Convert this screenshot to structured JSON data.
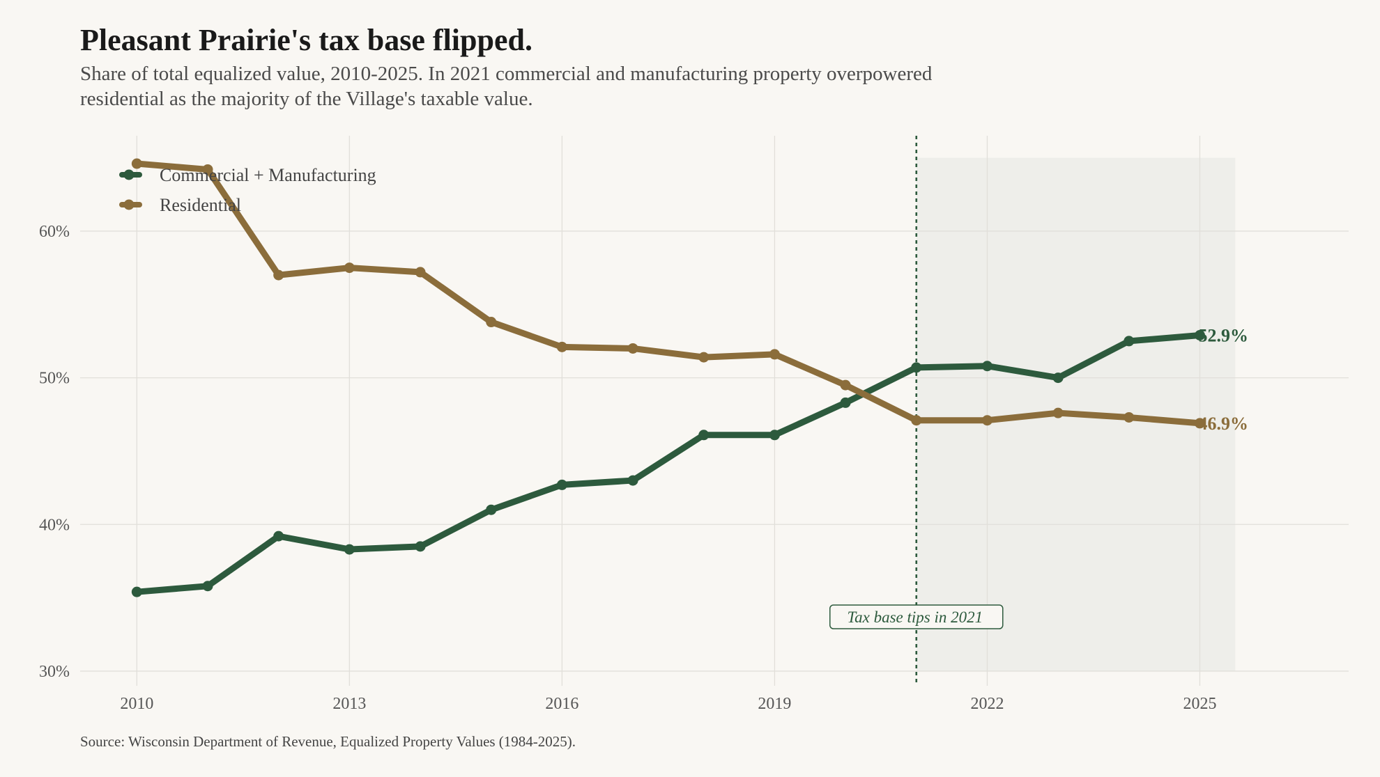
{
  "header": {
    "title": "Pleasant Prairie's tax base flipped.",
    "subtitle": "Share of total equalized value, 2010-2025. In 2021 commercial and manufacturing property overpowered residential as the majority of the Village's taxable value."
  },
  "footer": {
    "source": "Source: Wisconsin Department of Revenue, Equalized Property Values (1984-2025)."
  },
  "chart_data": {
    "type": "line",
    "title": "Pleasant Prairie's tax base flipped.",
    "xlabel": "",
    "ylabel": "",
    "x": [
      2010,
      2011,
      2012,
      2013,
      2014,
      2015,
      2016,
      2017,
      2018,
      2019,
      2020,
      2021,
      2022,
      2023,
      2024,
      2025
    ],
    "xlim": [
      2009.2,
      2027.1
    ],
    "ylim": [
      29.0,
      66.5
    ],
    "x_ticks": [
      2010,
      2013,
      2016,
      2019,
      2022,
      2025
    ],
    "x_tick_labels": [
      "2010",
      "2013",
      "2016",
      "2019",
      "2022",
      "2025"
    ],
    "y_ticks": [
      30,
      40,
      50,
      60
    ],
    "y_tick_labels": [
      "30%",
      "40%",
      "50%",
      "60%"
    ],
    "grid": true,
    "legend_position": "top-left",
    "series": [
      {
        "name": "Commercial + Manufacturing",
        "color": "#2d5a3d",
        "values": [
          35.4,
          35.8,
          39.2,
          38.3,
          38.5,
          41.0,
          42.7,
          43.0,
          46.1,
          46.1,
          48.3,
          50.7,
          50.8,
          50.0,
          52.5,
          52.9
        ],
        "end_label": "52.9%"
      },
      {
        "name": "Residential",
        "color": "#8b6d3b",
        "values": [
          64.6,
          64.2,
          57.0,
          57.5,
          57.2,
          53.8,
          52.1,
          52.0,
          51.4,
          51.6,
          49.5,
          47.1,
          47.1,
          47.6,
          47.3,
          46.9
        ],
        "end_label": "46.9%"
      }
    ],
    "annotations": [
      {
        "type": "vline",
        "x": 2021,
        "color": "#2d5a3d",
        "label": "Tax base tips in 2021"
      },
      {
        "type": "shaded-region",
        "x_start": 2021,
        "x_end": 2025.5,
        "y_start": 30,
        "y_end": 65,
        "color": "#eeeeea"
      }
    ]
  }
}
